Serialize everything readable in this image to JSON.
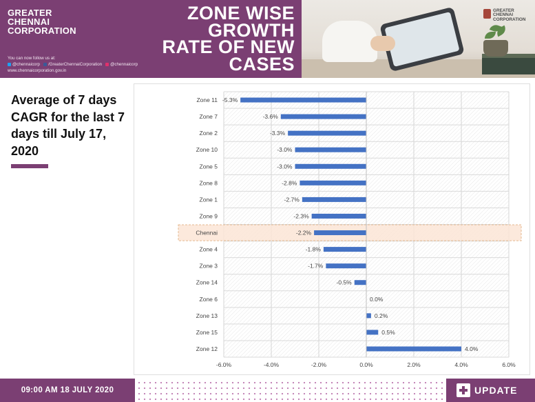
{
  "header": {
    "org_lines": [
      "GREATER",
      "CHENNAI",
      "CORPORATION"
    ],
    "follow_text": "You can now follow us at:",
    "social": [
      {
        "icon": "twitter-icon",
        "color": "#1da1f2",
        "label": "@chennaicorp"
      },
      {
        "icon": "facebook-icon",
        "color": "#3b5998",
        "label": "/GreaterChennaiCorporation"
      },
      {
        "icon": "instagram-icon",
        "color": "#e1306c",
        "label": "@chennaicorp"
      }
    ],
    "website": "www.chennaicorporation.gov.in",
    "headline_lines": [
      "ZONE WISE",
      "GROWTH",
      "RATE OF NEW",
      "CASES"
    ],
    "photo_logo_lines": [
      "GREATER",
      "CHENNAI",
      "CORPORATION"
    ]
  },
  "left_panel": {
    "subtitle": "Average of 7 days CAGR for the last 7 days till July 17, 2020"
  },
  "footer": {
    "datetime": "09:00 AM 18 JULY 2020",
    "update_label": "UPDATE"
  },
  "colors": {
    "brand_purple": "#7b3f73",
    "bar_blue": "#4472c4",
    "highlight_fill": "#fbe5d6",
    "highlight_border": "#e3b88f"
  },
  "chart_data": {
    "type": "bar",
    "orientation": "horizontal",
    "categories": [
      "Zone 11",
      "Zone 7",
      "Zone 2",
      "Zone 10",
      "Zone 5",
      "Zone 8",
      "Zone 1",
      "Zone 9",
      "Chennai",
      "Zone 4",
      "Zone 3",
      "Zone 14",
      "Zone 6",
      "Zone 13",
      "Zone 15",
      "Zone 12"
    ],
    "values": [
      -5.3,
      -3.6,
      -3.3,
      -3.0,
      -3.0,
      -2.8,
      -2.7,
      -2.3,
      -2.2,
      -1.8,
      -1.7,
      -0.5,
      0.0,
      0.2,
      0.5,
      4.0
    ],
    "data_labels": [
      "-5.3%",
      "-3.6%",
      "-3.3%",
      "-3.0%",
      "-3.0%",
      "-2.8%",
      "-2.7%",
      "-2.3%",
      "-2.2%",
      "-1.8%",
      "-1.7%",
      "-0.5%",
      "0.0%",
      "0.2%",
      "0.5%",
      "4.0%"
    ],
    "highlighted_category": "Chennai",
    "xlim": [
      -6.0,
      6.0
    ],
    "x_ticks": [
      -6.0,
      -4.0,
      -2.0,
      0.0,
      2.0,
      4.0,
      6.0
    ],
    "x_tick_labels": [
      "-6.0%",
      "-4.0%",
      "-2.0%",
      "0.0%",
      "2.0%",
      "4.0%",
      "6.0%"
    ],
    "title": "",
    "xlabel": "",
    "ylabel": "",
    "grid": true,
    "legend": "none"
  }
}
